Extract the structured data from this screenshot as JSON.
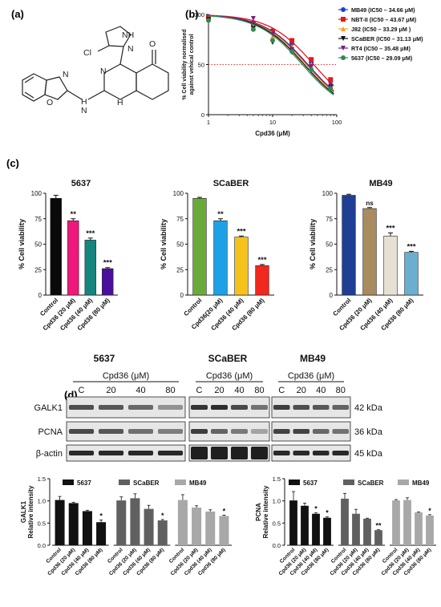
{
  "panel_labels": {
    "a": "(a)",
    "b": "(b)",
    "c": "(c)",
    "d": "(d)"
  },
  "structure": {
    "atoms": {
      "NH": "NH",
      "N1": "N",
      "Cl": "Cl",
      "O1": "O",
      "N2": "N",
      "O2": "O",
      "N3": "N",
      "H1": "H",
      "N4": "N",
      "H2": "H"
    }
  },
  "chart_data": [
    {
      "id": "b",
      "type": "line",
      "xlabel": "Cpd36  (μM)",
      "ylabel": "% Cell viability normalised against vehical control",
      "ylabel_lines": [
        "% Cell viability normalised",
        "against vehical control"
      ],
      "x_scale": "log",
      "xlim": [
        1,
        100
      ],
      "ylim": [
        0,
        100
      ],
      "x_ticks": [
        1,
        10,
        100
      ],
      "y_ticks": [
        0,
        50,
        100
      ],
      "reference_line": {
        "y": 50,
        "color": "#e53935",
        "style": "dotted"
      },
      "x": [
        1,
        5,
        10,
        20,
        40,
        80
      ],
      "series": [
        {
          "name": "MB49 (IC50 – 34.66 μM)",
          "color": "#1f3fd0",
          "marker": "circle",
          "ic50": 34.66,
          "values": [
            98,
            92,
            84,
            71,
            52,
            28
          ]
        },
        {
          "name": "NBT-II (IC50 – 43.67 μM)",
          "color": "#e01a1a",
          "marker": "square",
          "ic50": 43.67,
          "values": [
            97,
            90,
            83,
            74,
            55,
            35
          ]
        },
        {
          "name": "J82 (IC50 – 33.29 μM )",
          "color": "#f5a020",
          "marker": "triangle-up",
          "ic50": 33.29,
          "values": [
            96,
            88,
            78,
            68,
            50,
            30
          ]
        },
        {
          "name": "SCaBER (IC50 – 31.13 μM)",
          "color": "#111111",
          "marker": "triangle-down",
          "ic50": 31.13,
          "values": [
            95,
            86,
            72,
            62,
            48,
            28
          ]
        },
        {
          "name": "RT4 (IC50 – 35.48 μM)",
          "color": "#7b1f7f",
          "marker": "triangle-down",
          "ic50": 35.48,
          "values": [
            93,
            96,
            80,
            65,
            48,
            30
          ]
        },
        {
          "name": "5637 (IC50 – 29.09 μM)",
          "color": "#2e8b57",
          "marker": "circle",
          "ic50": 29.09,
          "values": [
            94,
            85,
            74,
            63,
            45,
            26
          ]
        }
      ]
    },
    {
      "id": "c1",
      "type": "bar",
      "title": "5637",
      "ylabel": "% Cell viability",
      "ylim": [
        0,
        100
      ],
      "y_ticks": [
        0,
        25,
        50,
        75,
        100
      ],
      "categories": [
        "Control",
        "Cpd36 (20 μM)",
        "Cpd36 (40 μM)",
        "Cpd36 (80 μM)"
      ],
      "values": [
        95,
        73,
        54,
        26
      ],
      "errors": [
        3,
        2,
        2,
        1
      ],
      "colors": [
        "#0a0a0a",
        "#f0187a",
        "#14857f",
        "#4b0f9e"
      ],
      "significance": [
        "",
        "**",
        "***",
        "***"
      ]
    },
    {
      "id": "c2",
      "type": "bar",
      "title": "SCaBER",
      "ylabel": "% Cell viability",
      "ylim": [
        0,
        100
      ],
      "y_ticks": [
        0,
        25,
        50,
        75,
        100
      ],
      "categories": [
        "Control",
        "Cpd36(20 μM)",
        "Cpd36 (40 μM)",
        "Cpd36 (80 μM)"
      ],
      "values": [
        95,
        73,
        57,
        29
      ],
      "errors": [
        1,
        2,
        1,
        1
      ],
      "colors": [
        "#6aaa3a",
        "#1ea0e6",
        "#f5c21b",
        "#f0281e"
      ],
      "significance": [
        "",
        "**",
        "***",
        "***"
      ]
    },
    {
      "id": "c3",
      "type": "bar",
      "title": "MB49",
      "ylabel": "% Cell viability",
      "ylim": [
        0,
        100
      ],
      "y_ticks": [
        0,
        25,
        50,
        75,
        100
      ],
      "categories": [
        "Control",
        "Cpd36 (20 μM)",
        "Cpd36 (40 μM)",
        "Cpd36 (80 μM)"
      ],
      "values": [
        98,
        85,
        58,
        42
      ],
      "errors": [
        1,
        1,
        3,
        1
      ],
      "colors": [
        "#1f3f94",
        "#a88b5e",
        "#e6e0d2",
        "#6aaed0"
      ],
      "significance": [
        "",
        "ns",
        "***",
        "***"
      ]
    },
    {
      "id": "d1",
      "type": "bar",
      "ylabel": "GALK1 Relative intensity",
      "ylabel_lines": [
        "GALK1",
        "Relative intensity"
      ],
      "ylim": [
        0,
        1.5
      ],
      "y_ticks": [
        0,
        0.5,
        1.0,
        1.5
      ],
      "legend": [
        {
          "name": "5637",
          "color": "#111111"
        },
        {
          "name": "SCaBER",
          "color": "#606060"
        },
        {
          "name": "MB49",
          "color": "#a8a8a8"
        }
      ],
      "categories": [
        "Control",
        "Cpd36 (20 μM)",
        "Cpd36 (40 μM)",
        "Cpd36 (80 μM)",
        "Control",
        "Cpd36 (20 μM)",
        "Cpd36 (40 μM)",
        "Cpd36 (80 μM)",
        "Control",
        "Cpd36 (20 μM)",
        "Cpd36 (40 μM)",
        "Cpd36 (80 μM)"
      ],
      "groups": [
        {
          "name": "5637",
          "color": "#111111",
          "values": [
            1.02,
            0.95,
            0.77,
            0.52
          ],
          "errors": [
            0.08,
            0.02,
            0.02,
            0.05
          ],
          "significance": [
            "",
            "",
            "",
            "*"
          ]
        },
        {
          "name": "SCaBER",
          "color": "#606060",
          "values": [
            1.01,
            1.06,
            0.82,
            0.56
          ],
          "errors": [
            0.08,
            0.1,
            0.08,
            0.02
          ],
          "significance": [
            "",
            "",
            "",
            "*"
          ]
        },
        {
          "name": "MB49",
          "color": "#a8a8a8",
          "values": [
            1.02,
            0.85,
            0.76,
            0.66
          ],
          "errors": [
            0.12,
            0.04,
            0.04,
            0.02
          ],
          "significance": [
            "",
            "",
            "",
            "*"
          ]
        }
      ]
    },
    {
      "id": "d2",
      "type": "bar",
      "ylabel": "PCNA Relative intensity",
      "ylabel_lines": [
        "PCNA",
        "Relative intensity"
      ],
      "ylim": [
        0,
        1.5
      ],
      "y_ticks": [
        0,
        0.5,
        1.0,
        1.5
      ],
      "legend": [
        {
          "name": "5637",
          "color": "#111111"
        },
        {
          "name": "SCaBER",
          "color": "#606060"
        },
        {
          "name": "MB49",
          "color": "#a8a8a8"
        }
      ],
      "categories": [
        "Control",
        "Cpd36 (20 μM)",
        "Cpd36 (40 μM)",
        "Cpd36 (80 μM)",
        "Control",
        "Cpd36 (20 μM)",
        "Cpd36 (40 μM)",
        "Cpd36 (80 μM)",
        "Control",
        "Cpd36 (20 μM)",
        "Cpd36 (40 μM)",
        "Cpd36 (80 μM)"
      ],
      "groups": [
        {
          "name": "5637",
          "color": "#111111",
          "values": [
            1.01,
            0.89,
            0.71,
            0.62
          ],
          "errors": [
            0.2,
            0.06,
            0.02,
            0.02
          ],
          "significance": [
            "",
            "",
            "*",
            "*"
          ]
        },
        {
          "name": "SCaBER",
          "color": "#606060",
          "values": [
            1.05,
            0.71,
            0.6,
            0.34
          ],
          "errors": [
            0.12,
            0.1,
            0.01,
            0.01
          ],
          "significance": [
            "",
            "",
            "",
            "**"
          ]
        },
        {
          "name": "MB49",
          "color": "#a8a8a8",
          "values": [
            1.01,
            1.02,
            0.74,
            0.67
          ],
          "errors": [
            0.02,
            0.05,
            0.01,
            0.02
          ],
          "significance": [
            "",
            "",
            "",
            "*"
          ]
        }
      ]
    }
  ],
  "western_blot": {
    "cell_lines": [
      "5637",
      "SCaBER",
      "MB49"
    ],
    "treatment_label": "Cpd36 (μM)",
    "lanes": [
      "C",
      "20",
      "40",
      "80"
    ],
    "proteins": [
      {
        "name": "GALK1",
        "size": "42 kDa",
        "intensities": [
          [
            0.72,
            0.68,
            0.6,
            0.4
          ],
          [
            0.85,
            0.88,
            0.75,
            0.55
          ],
          [
            0.8,
            0.72,
            0.68,
            0.62
          ]
        ]
      },
      {
        "name": "PCNA",
        "size": "36 kDa",
        "intensities": [
          [
            0.75,
            0.68,
            0.56,
            0.5
          ],
          [
            0.8,
            0.62,
            0.52,
            0.32
          ],
          [
            0.78,
            0.78,
            0.6,
            0.55
          ]
        ]
      },
      {
        "name": "β-actin",
        "size": "45 kDa",
        "intensities": [
          [
            0.9,
            0.9,
            0.9,
            0.9
          ],
          [
            0.95,
            0.95,
            0.95,
            0.95
          ],
          [
            0.9,
            0.9,
            0.9,
            0.9
          ]
        ]
      }
    ]
  }
}
